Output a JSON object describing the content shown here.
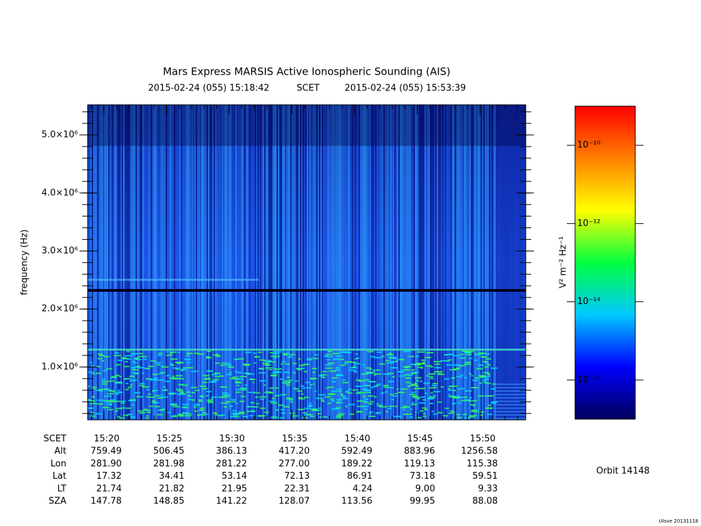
{
  "chart_data": {
    "type": "spectrogram",
    "title": "Mars Express MARSIS Active Ionospheric Sounding (AIS)",
    "start_time": "2015-02-24 (055) 15:18:42",
    "time_system": "SCET",
    "end_time": "2015-02-24 (055) 15:53:39",
    "y_label": "frequency (Hz)",
    "ylim": [
      90000,
      5520000
    ],
    "yticks": [
      {
        "value": 1000000,
        "label": "1.0×10⁶"
      },
      {
        "value": 2000000,
        "label": "2.0×10⁶"
      },
      {
        "value": 3000000,
        "label": "3.0×10⁶"
      },
      {
        "value": 4000000,
        "label": "4.0×10⁶"
      },
      {
        "value": 5000000,
        "label": "5.0×10⁶"
      }
    ],
    "xticks": [
      "15:20",
      "15:25",
      "15:30",
      "15:35",
      "15:40",
      "15:45",
      "15:50"
    ],
    "ephemeris": {
      "row_label": "SCET",
      "rows": [
        {
          "name": "Alt",
          "values": [
            "759.49",
            "506.45",
            "386.13",
            "417.20",
            "592.49",
            "883.96",
            "1256.58"
          ]
        },
        {
          "name": "Lon",
          "values": [
            "281.90",
            "281.98",
            "281.22",
            "277.00",
            "189.22",
            "119.13",
            "115.38"
          ]
        },
        {
          "name": "Lat",
          "values": [
            "17.32",
            "34.41",
            "53.14",
            "72.13",
            "86.91",
            "73.18",
            "59.51"
          ]
        },
        {
          "name": "LT",
          "values": [
            "21.74",
            "21.82",
            "21.95",
            "22.31",
            "4.24",
            "9.00",
            "9.33"
          ]
        },
        {
          "name": "SZA",
          "values": [
            "147.78",
            "148.85",
            "141.22",
            "128.07",
            "113.56",
            "99.95",
            "88.08"
          ]
        }
      ]
    },
    "colorbar": {
      "label": "V² m⁻² Hz⁻¹",
      "log_scale": true,
      "zlim": [
        1e-17,
        1e-09
      ],
      "ticks": [
        {
          "value": 1e-16,
          "label": "10⁻¹⁶"
        },
        {
          "value": 1e-14,
          "label": "10⁻¹⁴"
        },
        {
          "value": 1e-12,
          "label": "10⁻¹²"
        },
        {
          "value": 1e-10,
          "label": "10⁻¹⁰"
        }
      ],
      "colors": [
        "#00005a",
        "#0000ff",
        "#00c8ff",
        "#00ff40",
        "#ffff00",
        "#ff8000",
        "#ff0000"
      ]
    },
    "orbit": "Orbit 14148",
    "footer": "Ulove 20131118"
  }
}
